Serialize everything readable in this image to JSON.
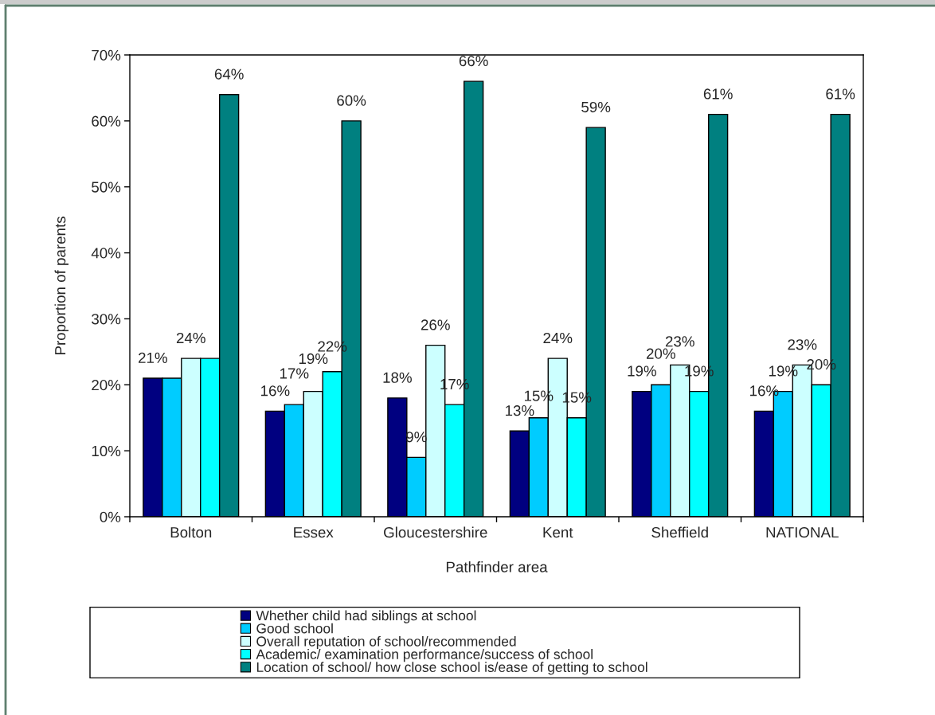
{
  "chart_data": {
    "type": "bar",
    "xlabel": "Pathfinder area",
    "ylabel": "Proportion of parents",
    "categories": [
      "Bolton",
      "Essex",
      "Gloucestershire",
      "Kent",
      "Sheffield",
      "NATIONAL"
    ],
    "ylim": [
      0,
      70
    ],
    "yticks": [
      {
        "value": 0,
        "label": "0%"
      },
      {
        "value": 10,
        "label": "10%"
      },
      {
        "value": 20,
        "label": "20%"
      },
      {
        "value": 30,
        "label": "30%"
      },
      {
        "value": 40,
        "label": "40%"
      },
      {
        "value": 50,
        "label": "50%"
      },
      {
        "value": 60,
        "label": "60%"
      },
      {
        "value": 70,
        "label": "70%"
      }
    ],
    "legend": "bottom",
    "series": [
      {
        "name": "Whether child had siblings at school",
        "color": "#000080",
        "values": [
          21,
          16,
          18,
          13,
          19,
          16
        ],
        "value_labels": [
          "21%",
          "16%",
          "18%",
          "13%",
          "19%",
          "16%"
        ]
      },
      {
        "name": "Good school",
        "color": "#00ccff",
        "values": [
          21,
          17,
          9,
          15,
          20,
          19
        ],
        "value_labels": [
          null,
          "17%",
          "9%",
          "15%",
          "20%",
          "19%"
        ]
      },
      {
        "name": "Overall reputation of school/recommended",
        "color": "#ccffff",
        "values": [
          24,
          19,
          26,
          24,
          23,
          23
        ],
        "value_labels": [
          "24%",
          "19%",
          "26%",
          "24%",
          "23%",
          "23%"
        ]
      },
      {
        "name": "Academic/ examination performance/success of school",
        "color": "#00ffff",
        "values": [
          24,
          22,
          17,
          15,
          19,
          20
        ],
        "value_labels": [
          null,
          "22%",
          "17%",
          "15%",
          "19%",
          "20%"
        ]
      },
      {
        "name": "Location of school/ how close school is/ease of getting to school",
        "color": "#008080",
        "values": [
          64,
          60,
          66,
          59,
          61,
          61
        ],
        "value_labels": [
          "64%",
          "60%",
          "66%",
          "59%",
          "61%",
          "61%"
        ]
      }
    ]
  }
}
